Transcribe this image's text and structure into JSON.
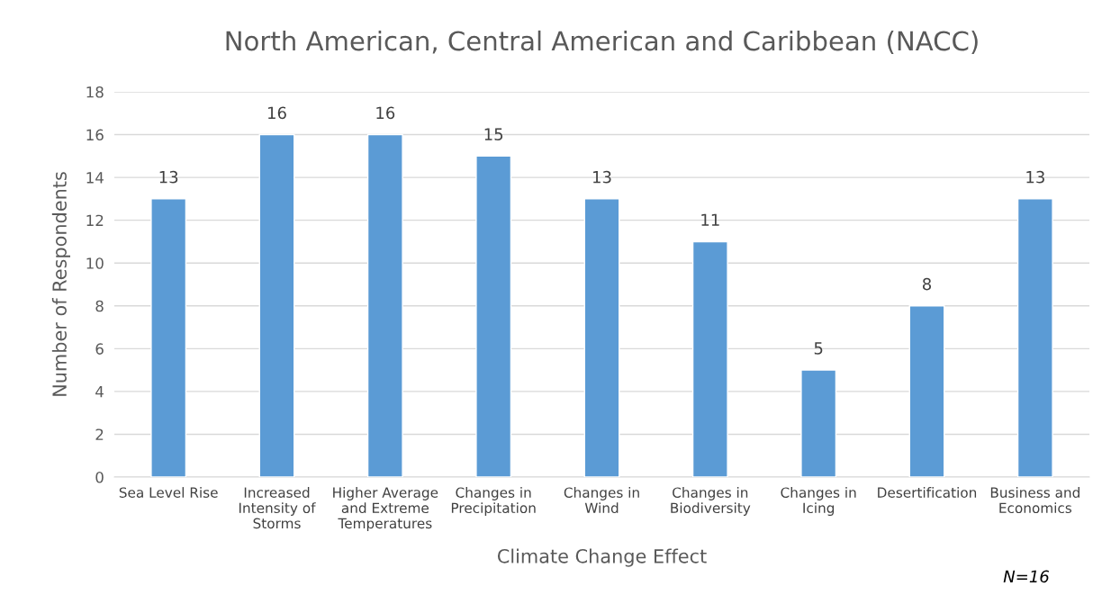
{
  "chart_data": {
    "type": "bar",
    "title": "North American, Central American and Caribbean (NACC)",
    "xlabel": "Climate Change Effect",
    "ylabel": "Number of Respondents",
    "categories": [
      "Sea Level Rise",
      "Increased\nIntensity of\nStorms",
      "Higher Average\nand Extreme\nTemperatures",
      "Changes in\nPrecipitation",
      "Changes in\nWind",
      "Changes in\nBiodiversity",
      "Changes in\nIcing",
      "Desertification",
      "Business and\nEconomics"
    ],
    "values": [
      13,
      16,
      16,
      15,
      13,
      11,
      5,
      8,
      13
    ],
    "color": "#5b9bd5",
    "ylim": [
      0,
      18
    ],
    "yticks": [
      0,
      2,
      4,
      6,
      8,
      10,
      12,
      14,
      16,
      18
    ],
    "grid": "y",
    "data_labels": true,
    "legend": false,
    "annotations": [
      "N=16"
    ]
  }
}
